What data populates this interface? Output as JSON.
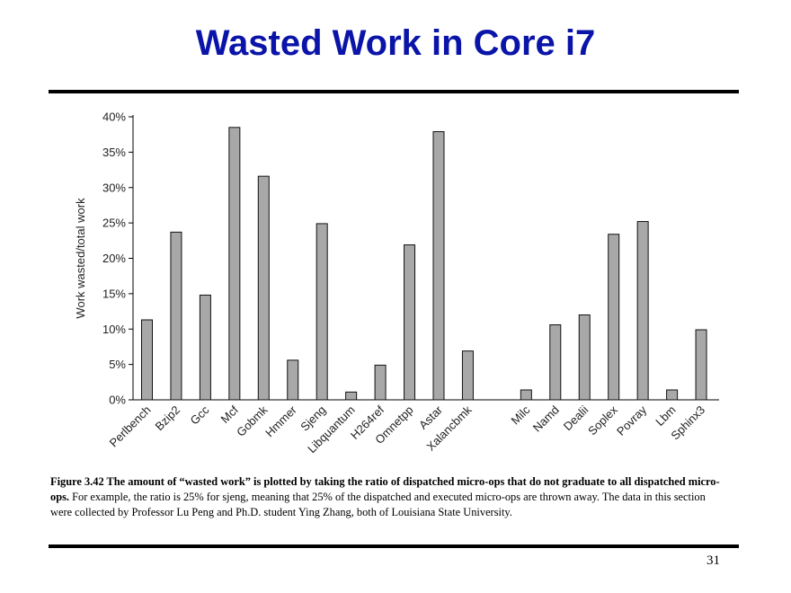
{
  "title": "Wasted Work in Core i7",
  "chart_data": {
    "type": "bar",
    "ylabel": "Work wasted/total work",
    "xlabel": "",
    "ylim": [
      0,
      40
    ],
    "yticks": [
      "0%",
      "5%",
      "10%",
      "15%",
      "20%",
      "25%",
      "30%",
      "35%",
      "40%"
    ],
    "categories": [
      "Perlbench",
      "Bzip2",
      "Gcc",
      "Mcf",
      "Gobmk",
      "Hmmer",
      "Sjeng",
      "Libquantum",
      "H264ref",
      "Omnetpp",
      "Astar",
      "Xalancbmk",
      "Milc",
      "Namd",
      "Dealii",
      "Soplex",
      "Povray",
      "Lbm",
      "Sphinx3"
    ],
    "values": [
      11.3,
      23.7,
      14.8,
      38.5,
      31.6,
      5.6,
      24.9,
      1.1,
      4.9,
      21.9,
      37.9,
      6.9,
      1.4,
      10.6,
      12.0,
      23.4,
      25.2,
      1.4,
      9.9
    ],
    "bar_color": "#a8a8a8",
    "grid": false
  },
  "caption": {
    "bold_text": "Figure 3.42 The amount of “wasted work” is plotted by taking the ratio of dispatched micro-ops that do not graduate to all dispatched micro-ops.",
    "text": " For example, the ratio is 25% for sjeng, meaning that 25% of the dispatched and executed micro-ops are thrown away. The data in this section were collected by Professor Lu Peng and Ph.D. student Ying Zhang, both of Louisiana State University."
  },
  "page_number": "31"
}
